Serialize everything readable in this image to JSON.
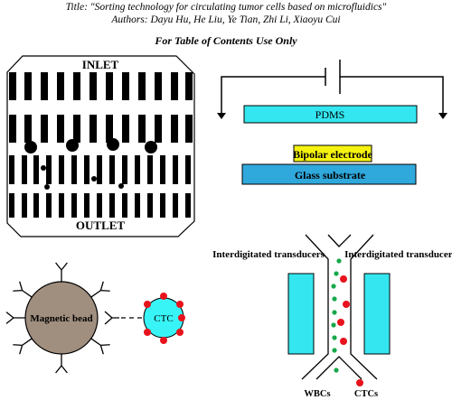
{
  "header": {
    "title": "Title: \"Sorting technology for circulating tumor cells based on microfluidics\"",
    "authors": "Authors: Dayu Hu, He Liu, Ye Tian, Zhi Li, Xiaoyu Cui",
    "toc": "For Table of Contents Use Only"
  },
  "filtration_panel": {
    "inlet_label": "INLET",
    "outlet_label": "OUTLET"
  },
  "electrode_panel": {
    "pdms_label": "PDMS",
    "bipolar_label": "Bipolar electrode",
    "glass_label": "Glass substrate",
    "colors": {
      "pdms": "#33e6ef",
      "bipolar": "#f5f20f",
      "glass": "#2fa8dc"
    }
  },
  "magnetic_panel": {
    "bead_label": "Magnetic bead",
    "ctc_label": "CTC",
    "colors": {
      "bead": "#a08e7e",
      "ctc": "#38f4f7",
      "marker": "#e8121c"
    }
  },
  "acoustic_panel": {
    "left_transducer_label": "Interdigitated transducers",
    "right_transducer_label": "Interdigitated transducers",
    "wbc_label": "WBCs",
    "ctc_label": "CTCs",
    "colors": {
      "transducer": "#33e6ef",
      "wbc": "#17a84a",
      "ctc": "#e8121c"
    }
  }
}
